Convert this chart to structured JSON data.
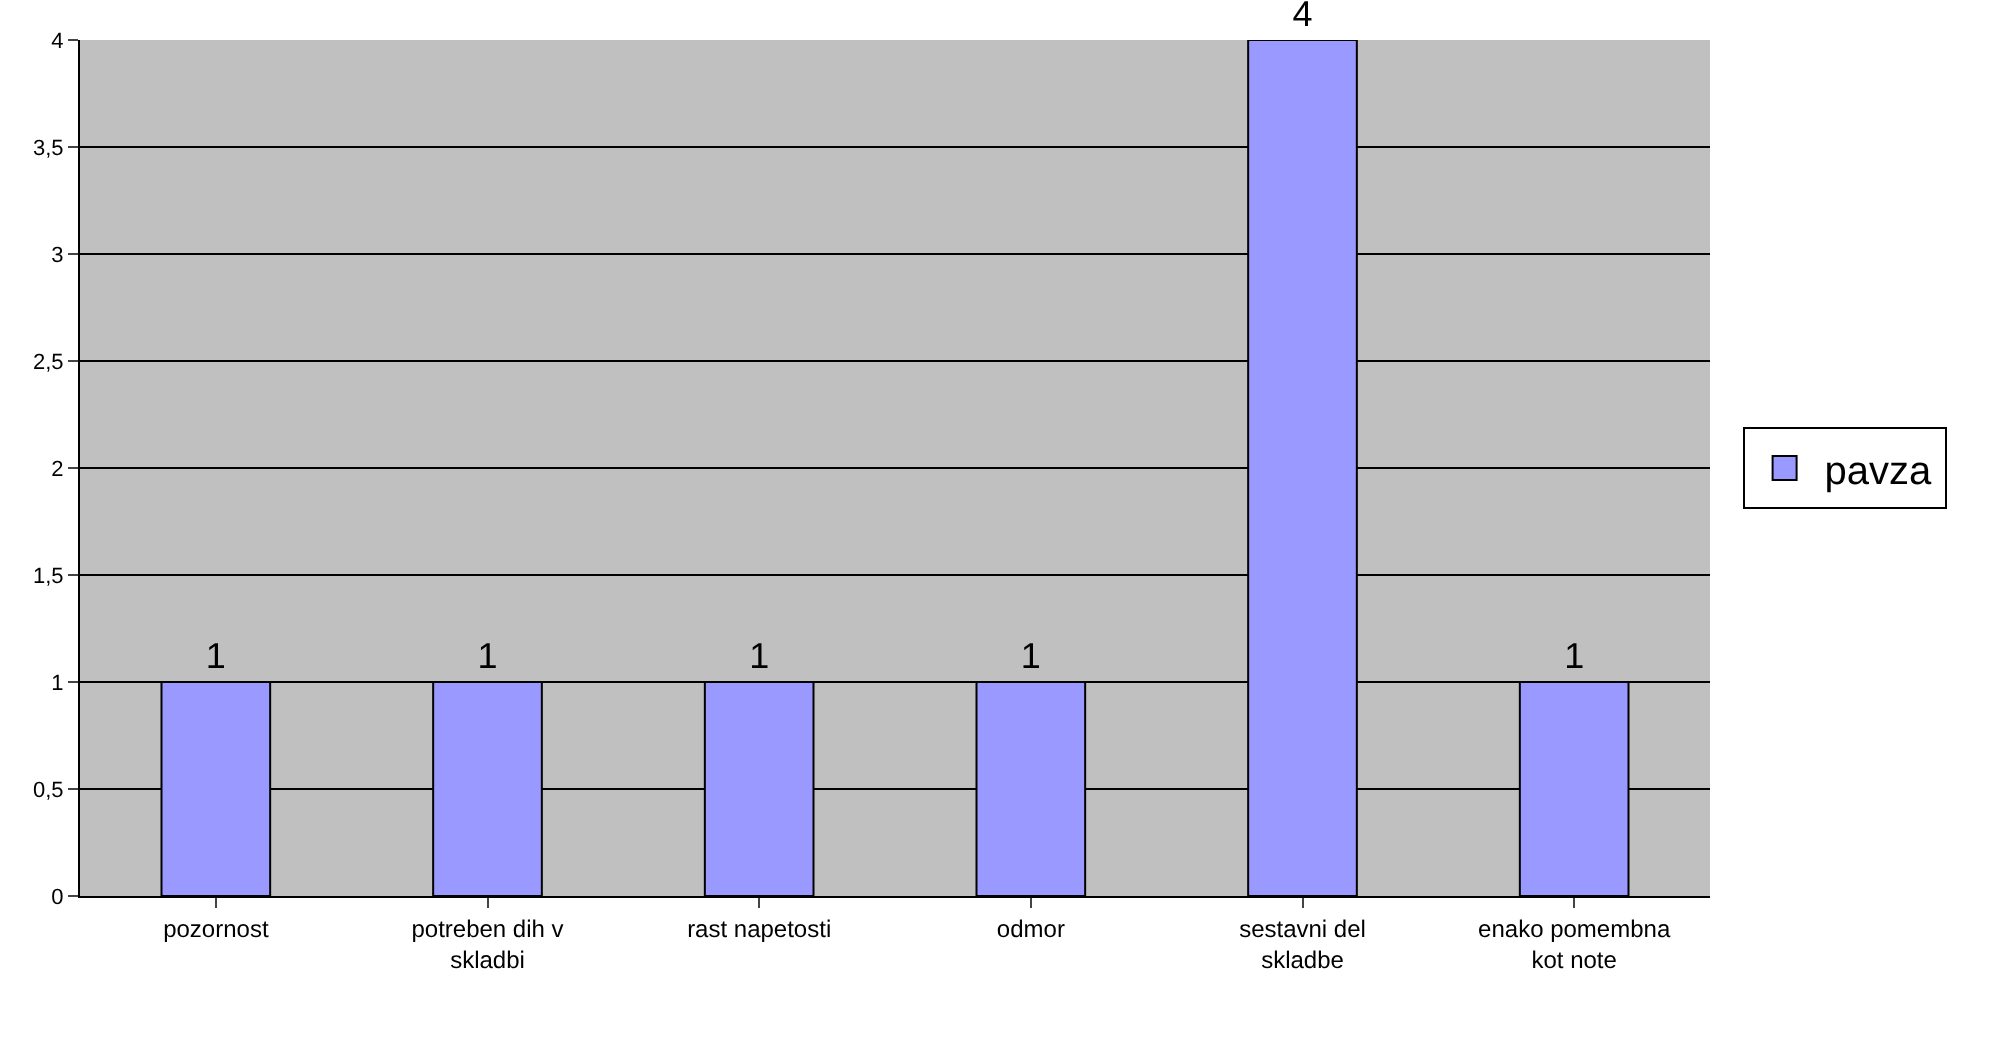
{
  "chart_data": {
    "type": "bar",
    "categories": [
      "pozornost",
      "potreben dih v skladbi",
      "rast napetosti",
      "odmor",
      "sestavni del skladbe",
      "enako pomembna kot note"
    ],
    "series": [
      {
        "name": "pavza",
        "color": "#9999ff",
        "values": [
          1,
          1,
          1,
          1,
          4,
          1
        ]
      }
    ],
    "ylim": [
      0,
      4
    ],
    "yticks": [
      0,
      {
        "value": 0.5,
        "label": "0,5"
      },
      1,
      {
        "value": 1.5,
        "label": "1,5"
      },
      2,
      {
        "value": 2.5,
        "label": "2,5"
      },
      3,
      {
        "value": 3.5,
        "label": "3,5"
      },
      4
    ],
    "grid": "y",
    "legend": "right",
    "data_labels": true
  }
}
